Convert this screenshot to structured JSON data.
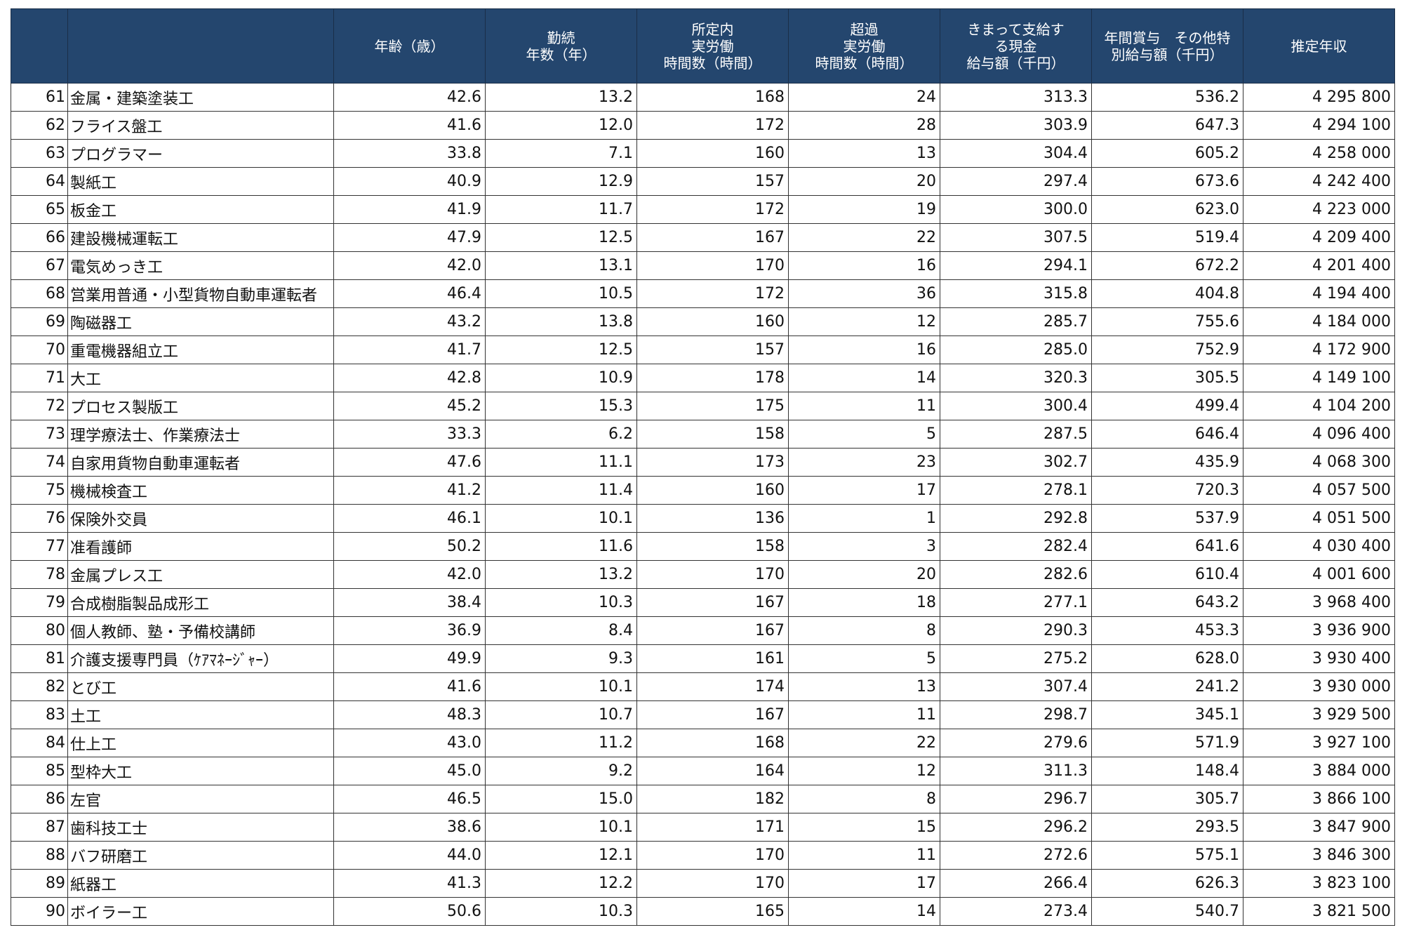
{
  "header": {
    "columns": [
      "",
      "",
      "年齢（歳）",
      "勤続\n年数（年）",
      "所定内\n実労働\n時間数（時間）",
      "超過\n実労働\n時間数（時間）",
      "きまって支給す\nる現金\n給与額（千円）",
      "年間賞与　その他特\n別給与額（千円）",
      "推定年収"
    ]
  },
  "table": {
    "rows": [
      [
        "61",
        "金属・建築塗装工",
        "42.6",
        "13.2",
        "168",
        "24",
        "313.3",
        "536.2",
        "4 295 800"
      ],
      [
        "62",
        "フライス盤工",
        "41.6",
        "12.0",
        "172",
        "28",
        "303.9",
        "647.3",
        "4 294 100"
      ],
      [
        "63",
        "プログラマー",
        "33.8",
        "7.1",
        "160",
        "13",
        "304.4",
        "605.2",
        "4 258 000"
      ],
      [
        "64",
        "製紙工",
        "40.9",
        "12.9",
        "157",
        "20",
        "297.4",
        "673.6",
        "4 242 400"
      ],
      [
        "65",
        "板金工",
        "41.9",
        "11.7",
        "172",
        "19",
        "300.0",
        "623.0",
        "4 223 000"
      ],
      [
        "66",
        "建設機械運転工",
        "47.9",
        "12.5",
        "167",
        "22",
        "307.5",
        "519.4",
        "4 209 400"
      ],
      [
        "67",
        "電気めっき工",
        "42.0",
        "13.1",
        "170",
        "16",
        "294.1",
        "672.2",
        "4 201 400"
      ],
      [
        "68",
        "営業用普通・小型貨物自動車運転者",
        "46.4",
        "10.5",
        "172",
        "36",
        "315.8",
        "404.8",
        "4 194 400"
      ],
      [
        "69",
        "陶磁器工",
        "43.2",
        "13.8",
        "160",
        "12",
        "285.7",
        "755.6",
        "4 184 000"
      ],
      [
        "70",
        "重電機器組立工",
        "41.7",
        "12.5",
        "157",
        "16",
        "285.0",
        "752.9",
        "4 172 900"
      ],
      [
        "71",
        "大工",
        "42.8",
        "10.9",
        "178",
        "14",
        "320.3",
        "305.5",
        "4 149 100"
      ],
      [
        "72",
        "プロセス製版工",
        "45.2",
        "15.3",
        "175",
        "11",
        "300.4",
        "499.4",
        "4 104 200"
      ],
      [
        "73",
        "理学療法士、作業療法士",
        "33.3",
        "6.2",
        "158",
        "5",
        "287.5",
        "646.4",
        "4 096 400"
      ],
      [
        "74",
        "自家用貨物自動車運転者",
        "47.6",
        "11.1",
        "173",
        "23",
        "302.7",
        "435.9",
        "4 068 300"
      ],
      [
        "75",
        "機械検査工",
        "41.2",
        "11.4",
        "160",
        "17",
        "278.1",
        "720.3",
        "4 057 500"
      ],
      [
        "76",
        "保険外交員",
        "46.1",
        "10.1",
        "136",
        "1",
        "292.8",
        "537.9",
        "4 051 500"
      ],
      [
        "77",
        "准看護師",
        "50.2",
        "11.6",
        "158",
        "3",
        "282.4",
        "641.6",
        "4 030 400"
      ],
      [
        "78",
        "金属プレス工",
        "42.0",
        "13.2",
        "170",
        "20",
        "282.6",
        "610.4",
        "4 001 600"
      ],
      [
        "79",
        "合成樹脂製品成形工",
        "38.4",
        "10.3",
        "167",
        "18",
        "277.1",
        "643.2",
        "3 968 400"
      ],
      [
        "80",
        "個人教師、塾・予備校講師",
        "36.9",
        "8.4",
        "167",
        "8",
        "290.3",
        "453.3",
        "3 936 900"
      ],
      [
        "81",
        "介護支援専門員（ｹｱﾏﾈｰｼﾞｬｰ）",
        "49.9",
        "9.3",
        "161",
        "5",
        "275.2",
        "628.0",
        "3 930 400"
      ],
      [
        "82",
        "とび工",
        "41.6",
        "10.1",
        "174",
        "13",
        "307.4",
        "241.2",
        "3 930 000"
      ],
      [
        "83",
        "土工",
        "48.3",
        "10.7",
        "167",
        "11",
        "298.7",
        "345.1",
        "3 929 500"
      ],
      [
        "84",
        "仕上工",
        "43.0",
        "11.2",
        "168",
        "22",
        "279.6",
        "571.9",
        "3 927 100"
      ],
      [
        "85",
        "型枠大工",
        "45.0",
        "9.2",
        "164",
        "12",
        "311.3",
        "148.4",
        "3 884 000"
      ],
      [
        "86",
        "左官",
        "46.5",
        "15.0",
        "182",
        "8",
        "296.7",
        "305.7",
        "3 866 100"
      ],
      [
        "87",
        "歯科技工士",
        "38.6",
        "10.1",
        "171",
        "15",
        "296.2",
        "293.5",
        "3 847 900"
      ],
      [
        "88",
        "バフ研磨工",
        "44.0",
        "12.1",
        "170",
        "11",
        "272.6",
        "575.1",
        "3 846 300"
      ],
      [
        "89",
        "紙器工",
        "41.3",
        "12.2",
        "170",
        "17",
        "266.4",
        "626.3",
        "3 823 100"
      ],
      [
        "90",
        "ボイラー工",
        "50.6",
        "10.3",
        "165",
        "14",
        "273.4",
        "540.7",
        "3 821 500"
      ]
    ]
  }
}
